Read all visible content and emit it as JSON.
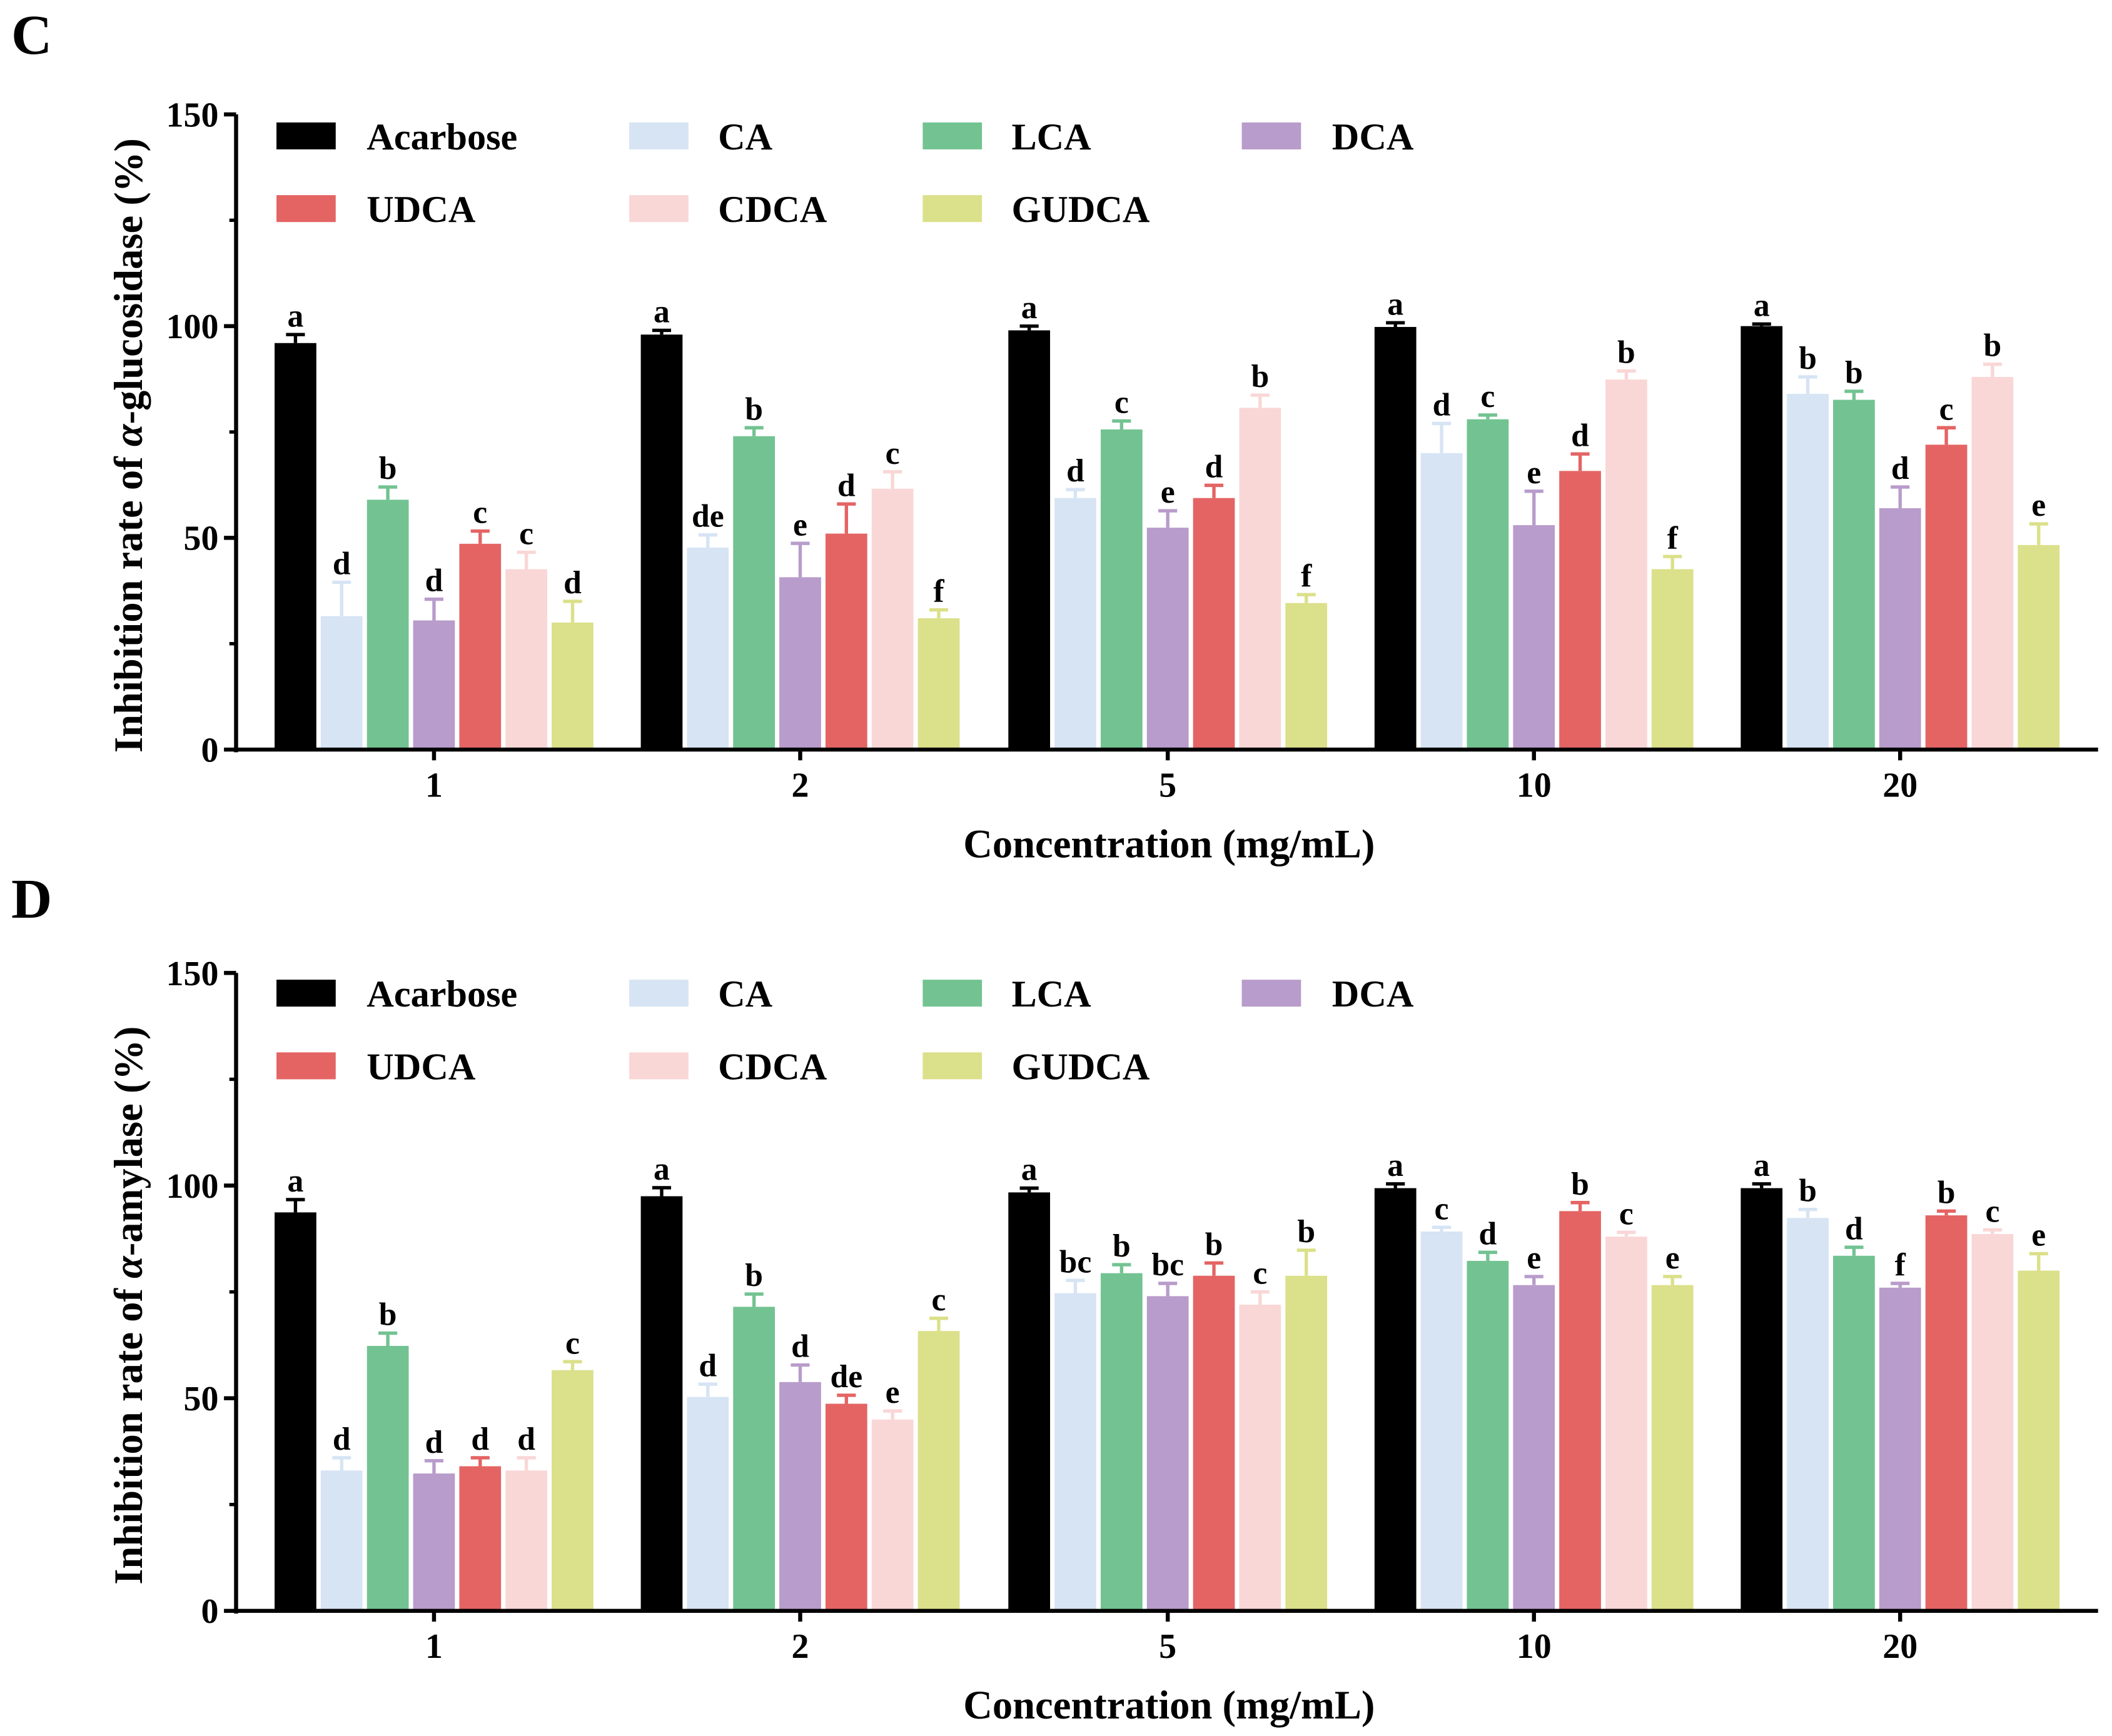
{
  "colors": {
    "Acarbose": "#000000",
    "CA": "#d6e4f4",
    "LCA": "#72c391",
    "DCA": "#b89ccb",
    "UDCA": "#e46464",
    "CDCA": "#f9d7d6",
    "GUDCA": "#dbe08a"
  },
  "chart_data": [
    {
      "panel_label": "C",
      "type": "bar",
      "title": "",
      "xlabel": "Concentration (mg/mL)",
      "ylabel_parts": [
        "Inhibition rate of ",
        "α",
        "-glucosidase (%)"
      ],
      "ylim": [
        0,
        150
      ],
      "yticks": [
        0,
        50,
        100,
        150
      ],
      "categories": [
        "1",
        "2",
        "5",
        "10",
        "20"
      ],
      "legend": "top-left, 2 rows",
      "series": [
        {
          "name": "Acarbose",
          "values": [
            96,
            98,
            99,
            99.8,
            100
          ],
          "errors": [
            2,
            1,
            1,
            1,
            0.5
          ],
          "letters": [
            "a",
            "a",
            "a",
            "a",
            "a"
          ]
        },
        {
          "name": "CA",
          "values": [
            31.5,
            47.7,
            59.4,
            70,
            84
          ],
          "errors": [
            8,
            3,
            2,
            7,
            4
          ],
          "letters": [
            "d",
            "de",
            "d",
            "d",
            "b"
          ]
        },
        {
          "name": "LCA",
          "values": [
            59,
            74,
            75.6,
            78,
            82.6
          ],
          "errors": [
            3,
            2,
            2,
            1,
            2
          ],
          "letters": [
            "b",
            "b",
            "c",
            "c",
            "b"
          ]
        },
        {
          "name": "DCA",
          "values": [
            30.5,
            40.7,
            52.4,
            53,
            57
          ],
          "errors": [
            5,
            8,
            4,
            8,
            5
          ],
          "letters": [
            "d",
            "e",
            "e",
            "e",
            "d"
          ]
        },
        {
          "name": "UDCA",
          "values": [
            48.6,
            51,
            59.4,
            65.8,
            72
          ],
          "errors": [
            3,
            7,
            3,
            4,
            4
          ],
          "letters": [
            "c",
            "d",
            "d",
            "d",
            "c"
          ]
        },
        {
          "name": "CDCA",
          "values": [
            42.6,
            61.6,
            80.7,
            87.4,
            88
          ],
          "errors": [
            4,
            4,
            3,
            2,
            3
          ],
          "letters": [
            "c",
            "c",
            "b",
            "b",
            "b"
          ]
        },
        {
          "name": "GUDCA",
          "values": [
            30,
            31,
            34.6,
            42.6,
            48.3
          ],
          "errors": [
            5,
            2,
            2,
            3,
            5
          ],
          "letters": [
            "d",
            "f",
            "f",
            "f",
            "e"
          ]
        }
      ]
    },
    {
      "panel_label": "D",
      "type": "bar",
      "title": "",
      "xlabel": "Concentration (mg/mL)",
      "ylabel_parts": [
        "Inhibition rate of ",
        "α",
        "-amylase (%)"
      ],
      "ylim": [
        0,
        150
      ],
      "yticks": [
        0,
        50,
        100,
        150
      ],
      "categories": [
        "1",
        "2",
        "5",
        "10",
        "20"
      ],
      "legend": "top-left, 2 rows",
      "series": [
        {
          "name": "Acarbose",
          "values": [
            93.7,
            97.5,
            98.4,
            99.4,
            99.4
          ],
          "errors": [
            3,
            2,
            1,
            1,
            1
          ],
          "letters": [
            "a",
            "a",
            "a",
            "a",
            "a"
          ]
        },
        {
          "name": "CA",
          "values": [
            33,
            50.3,
            74.7,
            89.2,
            92.4
          ],
          "errors": [
            3,
            3,
            3,
            1,
            2
          ],
          "letters": [
            "d",
            "d",
            "bc",
            "c",
            "b"
          ]
        },
        {
          "name": "LCA",
          "values": [
            62.3,
            71.5,
            79.4,
            82.3,
            83.5
          ],
          "errors": [
            3,
            3,
            2,
            2,
            2
          ],
          "letters": [
            "b",
            "b",
            "b",
            "d",
            "d"
          ]
        },
        {
          "name": "DCA",
          "values": [
            32.3,
            53.8,
            74,
            76.6,
            76
          ],
          "errors": [
            3,
            4,
            3,
            2,
            1
          ],
          "letters": [
            "d",
            "d",
            "bc",
            "e",
            "f"
          ]
        },
        {
          "name": "UDCA",
          "values": [
            34,
            48.7,
            78.8,
            94,
            93
          ],
          "errors": [
            2,
            2,
            3,
            2,
            1
          ],
          "letters": [
            "d",
            "de",
            "b",
            "b",
            "b"
          ]
        },
        {
          "name": "CDCA",
          "values": [
            33,
            45,
            72,
            88,
            88.6
          ],
          "errors": [
            3,
            2,
            3,
            1,
            1
          ],
          "letters": [
            "d",
            "e",
            "c",
            "c",
            "c"
          ]
        },
        {
          "name": "GUDCA",
          "values": [
            56.6,
            65.8,
            78.8,
            76.6,
            80
          ],
          "errors": [
            2,
            3,
            6,
            2,
            4
          ],
          "letters": [
            "c",
            "c",
            "b",
            "e",
            "e"
          ]
        }
      ]
    }
  ]
}
